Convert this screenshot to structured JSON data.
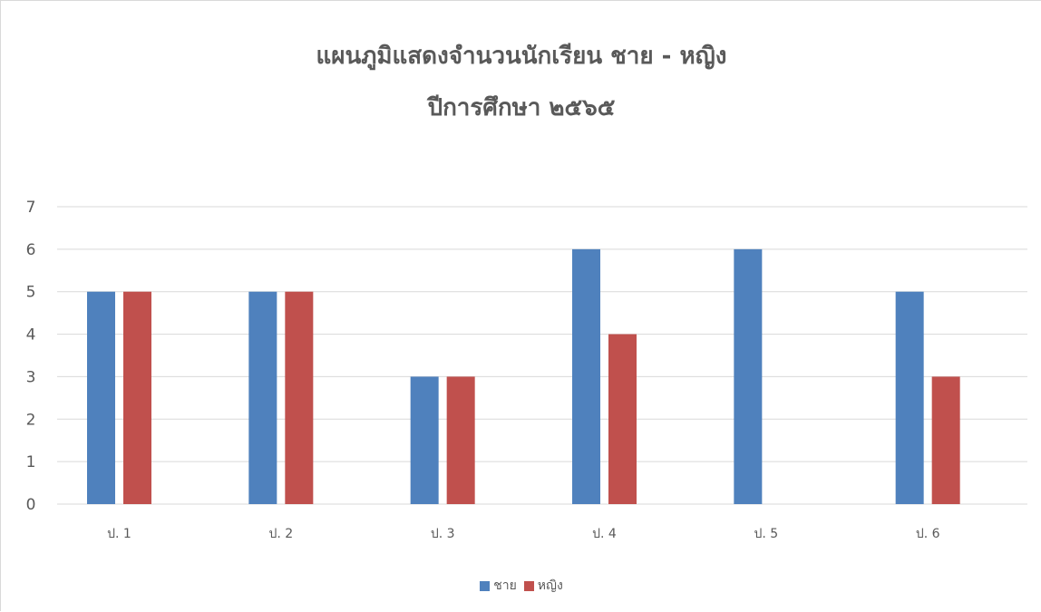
{
  "chart_data": {
    "type": "bar",
    "title": "แผนภูมิแสดงจำนวนนักเรียน ชาย - หญิง",
    "subtitle": "ปีการศึกษา ๒๕๖๕",
    "xlabel": "",
    "ylabel": "",
    "categories": [
      "ป. 1",
      "ป. 2",
      "ป. 3",
      "ป. 4",
      "ป. 5",
      "ป. 6"
    ],
    "series": [
      {
        "name": "ชาย",
        "color": "#4f81bd",
        "values": [
          5,
          5,
          3,
          6,
          6,
          5
        ]
      },
      {
        "name": "หญิง",
        "color": "#c0504d",
        "values": [
          5,
          5,
          3,
          4,
          0,
          3
        ]
      }
    ],
    "ylim": [
      0,
      7
    ],
    "yticks": [
      0,
      1,
      2,
      3,
      4,
      5,
      6,
      7
    ],
    "grid": true,
    "gridColor": "#d9d9d9",
    "legend": "bottom"
  }
}
